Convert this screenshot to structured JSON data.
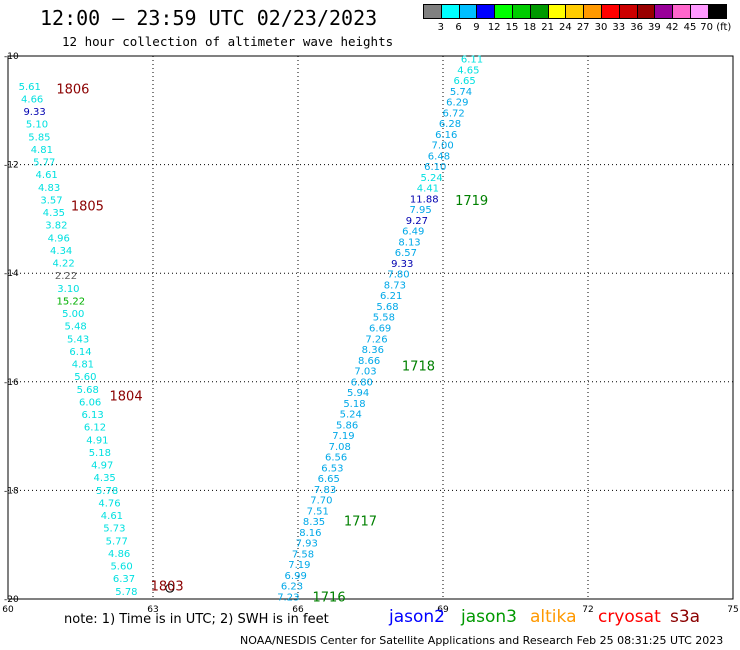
{
  "header": {
    "title": "12:00 — 23:59 UTC 02/23/2023",
    "subtitle": "12 hour collection of altimeter wave heights"
  },
  "color_scale": {
    "labels": [
      "3",
      "6",
      "9",
      "12",
      "15",
      "18",
      "21",
      "24",
      "27",
      "30",
      "33",
      "36",
      "39",
      "42",
      "45",
      "70 (ft)"
    ],
    "colors": [
      "#808080",
      "#00ffff",
      "#00bfff",
      "#0000ff",
      "#00ff00",
      "#00cc00",
      "#009900",
      "#ffff00",
      "#ffcc00",
      "#ff9900",
      "#ff0000",
      "#cc0000",
      "#990000",
      "#990099",
      "#ff66cc",
      "#ff99ff",
      "#000000"
    ]
  },
  "map": {
    "x_axis": {
      "ticks": [
        "60",
        "63",
        "66",
        "69",
        "72",
        "75"
      ]
    },
    "y_axis": {
      "ticks": [
        "-10",
        "-12",
        "-14",
        "-16",
        "-18",
        "-20"
      ]
    }
  },
  "pass_labels": [
    {
      "text": "1806",
      "color": "#8b0000",
      "lon": 61.0,
      "lat": -10.6
    },
    {
      "text": "1805",
      "color": "#8b0000",
      "lon": 61.3,
      "lat": -12.75
    },
    {
      "text": "1804",
      "color": "#8b0000",
      "lon": 62.1,
      "lat": -16.25
    },
    {
      "text": "1803",
      "color": "#8b0000",
      "lon": 62.95,
      "lat": -19.75
    },
    {
      "text": "1719",
      "color": "#008000",
      "lon": 69.25,
      "lat": -12.65
    },
    {
      "text": "1718",
      "color": "#008000",
      "lon": 68.15,
      "lat": -15.7
    },
    {
      "text": "1717",
      "color": "#008000",
      "lon": 66.95,
      "lat": -18.55
    },
    {
      "text": "1716",
      "color": "#008000",
      "lon": 66.3,
      "lat": -19.95
    }
  ],
  "track_west": {
    "lon_start": 60.45,
    "lat_start": -10.55,
    "lon_end": 62.45,
    "lat_end": -19.85,
    "values": [
      "5.61",
      "4.66",
      "9.33",
      "5.10",
      "5.85",
      "4.81",
      "5.77",
      "4.61",
      "4.83",
      "3.57",
      "4.35",
      "3.82",
      "4.96",
      "4.34",
      "4.22",
      "2.22",
      "3.10",
      "15.22",
      "5.00",
      "5.48",
      "5.43",
      "6.14",
      "4.81",
      "5.60",
      "5.68",
      "6.06",
      "6.13",
      "6.12",
      "4.91",
      "5.18",
      "4.97",
      "4.35",
      "5.78",
      "4.76",
      "4.61",
      "5.73",
      "5.77",
      "4.86",
      "5.60",
      "6.37",
      "5.78"
    ],
    "colors": [
      "#00e0e0",
      "#00e0e0",
      "#0000b0",
      "#00e0e0",
      "#00e0e0",
      "#00e0e0",
      "#00e0e0",
      "#00e0e0",
      "#00e0e0",
      "#00e0e0",
      "#00e0e0",
      "#00e0e0",
      "#00e0e0",
      "#00e0e0",
      "#00e0e0",
      "#606060",
      "#00e0e0",
      "#00b000",
      "#00e0e0",
      "#00e0e0",
      "#00e0e0",
      "#00e0e0",
      "#00e0e0",
      "#00e0e0",
      "#00e0e0",
      "#00e0e0",
      "#00e0e0",
      "#00e0e0",
      "#00e0e0",
      "#00e0e0",
      "#00e0e0",
      "#00e0e0",
      "#00e0e0",
      "#00e0e0",
      "#00e0e0",
      "#00e0e0",
      "#00e0e0",
      "#00e0e0",
      "#00e0e0",
      "#00e0e0",
      "#00e0e0"
    ]
  },
  "track_east": {
    "lon_start": 69.6,
    "lat_start": -10.05,
    "lon_end": 65.8,
    "lat_end": -19.95,
    "values": [
      "6.11",
      "4.65",
      "6.65",
      "5.74",
      "6.29",
      "6.72",
      "6.28",
      "6.16",
      "7.00",
      "6.48",
      "6.10",
      "5.24",
      "4.41",
      "11.88",
      "7.95",
      "9.27",
      "6.49",
      "8.13",
      "6.57",
      "9.33",
      "7.80",
      "8.73",
      "6.21",
      "5.68",
      "5.58",
      "6.69",
      "7.26",
      "8.36",
      "8.66",
      "7.03",
      "6.80",
      "5.94",
      "5.18",
      "5.24",
      "5.86",
      "7.19",
      "7.08",
      "6.56",
      "6.53",
      "6.65",
      "7.83",
      "7.70",
      "7.51",
      "8.35",
      "8.16",
      "7.93",
      "7.58",
      "7.19",
      "6.99",
      "6.23",
      "7.23"
    ],
    "colors": [
      "#00e0e0",
      "#00e0e0",
      "#00e0e0",
      "#00a8e8",
      "#00a8e8",
      "#00a8e8",
      "#00a8e8",
      "#00a8e8",
      "#00a8e8",
      "#00a8e8",
      "#00a8e8",
      "#00e0e0",
      "#00e0e0",
      "#0000b0",
      "#00a8e8",
      "#0000b0",
      "#00a8e8",
      "#00a8e8",
      "#00a8e8",
      "#0000b0",
      "#00a8e8",
      "#00a8e8",
      "#00a8e8",
      "#00a8e8",
      "#00a8e8",
      "#00a8e8",
      "#00a8e8",
      "#00a8e8",
      "#00a8e8",
      "#00a8e8",
      "#00a8e8",
      "#00a8e8",
      "#00a8e8",
      "#00a8e8",
      "#00a8e8",
      "#00a8e8",
      "#00a8e8",
      "#00a8e8",
      "#00a8e8",
      "#00a8e8",
      "#00a8e8",
      "#00a8e8",
      "#00a8e8",
      "#00a8e8",
      "#00a8e8",
      "#00a8e8",
      "#00a8e8",
      "#00a8e8",
      "#00a8e8",
      "#00a8e8",
      "#00a8e8"
    ]
  },
  "note": "note: 1) Time is in UTC; 2) SWH is in feet",
  "satellites": [
    {
      "name": "jason2",
      "color": "#0000ff"
    },
    {
      "name": "jason3",
      "color": "#009900"
    },
    {
      "name": "altika",
      "color": "#ff9900"
    },
    {
      "name": "cryosat",
      "color": "#ff0000"
    },
    {
      "name": "s3a",
      "color": "#8b0000"
    }
  ],
  "footer": "NOAA/NESDIS Center for Satellite Applications and Research    Feb 25 08:31:25 UTC 2023"
}
